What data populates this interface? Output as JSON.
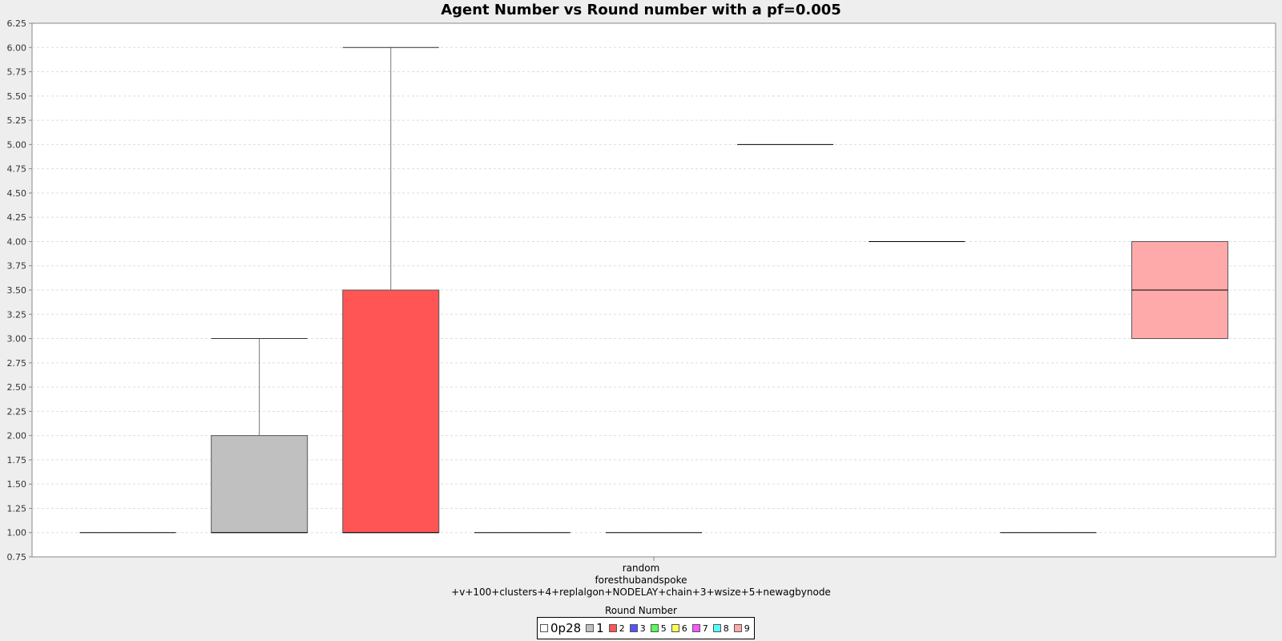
{
  "chart_data": {
    "type": "box",
    "title": "Agent Number vs Round number with a pf=0.005",
    "category_label_lines": [
      "random",
      "foresthubandspoke",
      "+v+100+clusters+4+replalgon+NODELAY+chain+3+wsize+5+newagbynode"
    ],
    "legend_title": "Round Number",
    "ylim": [
      0.75,
      6.25
    ],
    "yticks": [
      "0.75",
      "1.00",
      "1.25",
      "1.50",
      "1.75",
      "2.00",
      "2.25",
      "2.50",
      "2.75",
      "3.00",
      "3.25",
      "3.50",
      "3.75",
      "4.00",
      "4.25",
      "4.50",
      "4.75",
      "5.00",
      "5.25",
      "5.50",
      "5.75",
      "6.00",
      "6.25"
    ],
    "grid": true,
    "legend_position": "bottom-center",
    "series": [
      {
        "name": "0p28",
        "color": "#ffffff",
        "min": 1,
        "q1": 1,
        "median": 1,
        "q3": 1,
        "max": 1
      },
      {
        "name": "1",
        "color": "#c0c0c0",
        "min": 1,
        "q1": 1,
        "median": 1,
        "q3": 2,
        "max": 3
      },
      {
        "name": "2",
        "color": "#ff5555",
        "min": 1,
        "q1": 1,
        "median": 1,
        "q3": 3.5,
        "max": 6
      },
      {
        "name": "3",
        "color": "#5555ff",
        "min": 1,
        "q1": 1,
        "median": 1,
        "q3": 1,
        "max": 1
      },
      {
        "name": "5",
        "color": "#55ff55",
        "min": 1,
        "q1": 1,
        "median": 1,
        "q3": 1,
        "max": 1
      },
      {
        "name": "6",
        "color": "#ffff55",
        "min": 5,
        "q1": 5,
        "median": 5,
        "q3": 5,
        "max": 5
      },
      {
        "name": "7",
        "color": "#ff55ff",
        "min": 4,
        "q1": 4,
        "median": 4,
        "q3": 4,
        "max": 4
      },
      {
        "name": "8",
        "color": "#55ffff",
        "min": 1,
        "q1": 1,
        "median": 1,
        "q3": 1,
        "max": 1
      },
      {
        "name": "9",
        "color": "#ffaaaa",
        "min": 3,
        "q1": 3,
        "median": 3.5,
        "q3": 4,
        "max": 4
      }
    ]
  }
}
